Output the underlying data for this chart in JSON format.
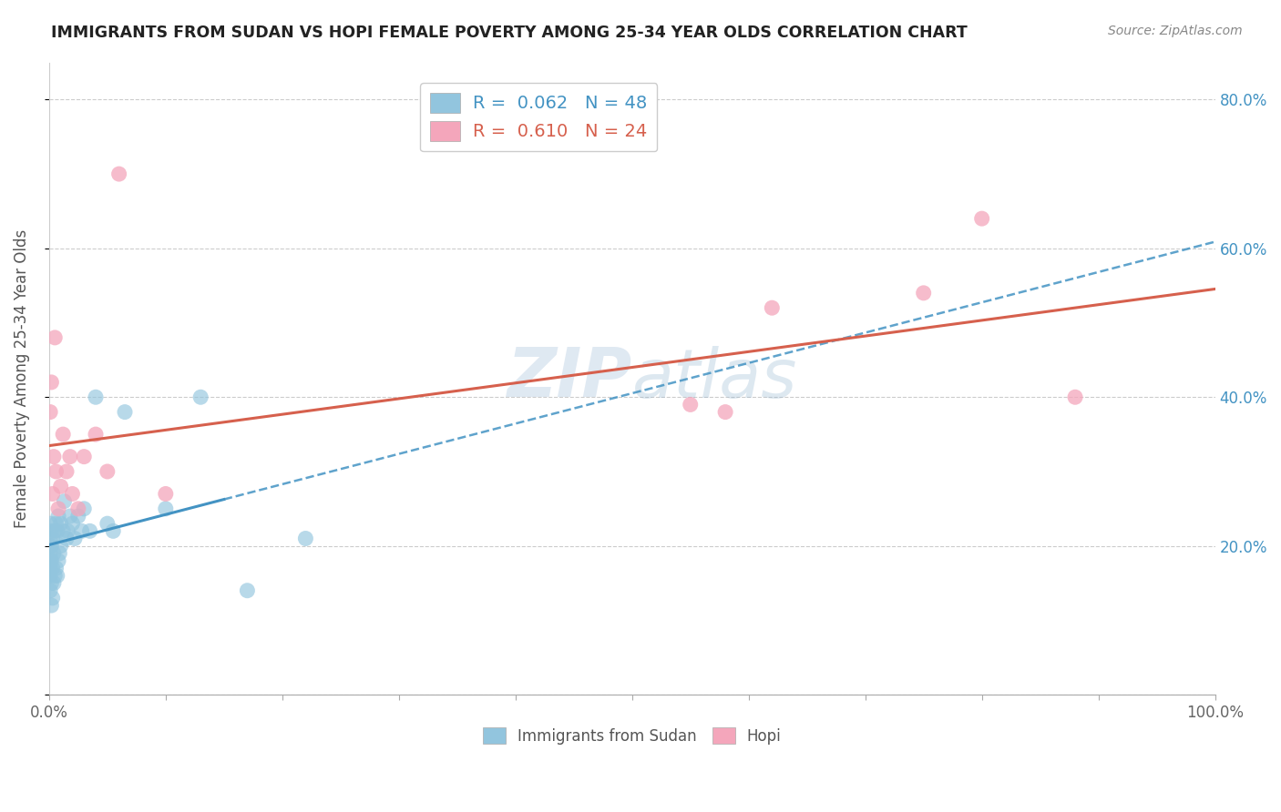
{
  "title": "IMMIGRANTS FROM SUDAN VS HOPI FEMALE POVERTY AMONG 25-34 YEAR OLDS CORRELATION CHART",
  "source": "Source: ZipAtlas.com",
  "ylabel": "Female Poverty Among 25-34 Year Olds",
  "xlim": [
    0.0,
    1.0
  ],
  "ylim": [
    0.0,
    0.85
  ],
  "blue_R": "0.062",
  "blue_N": "48",
  "pink_R": "0.610",
  "pink_N": "24",
  "blue_color": "#92c5de",
  "pink_color": "#f4a6bb",
  "blue_line_color": "#4393c3",
  "pink_line_color": "#d6604d",
  "right_label_color": "#4393c3",
  "watermark_color": "#c8d8e8",
  "sudan_x": [
    0.001,
    0.001,
    0.001,
    0.001,
    0.001,
    0.001,
    0.001,
    0.001,
    0.002,
    0.002,
    0.002,
    0.002,
    0.002,
    0.003,
    0.003,
    0.003,
    0.004,
    0.004,
    0.005,
    0.005,
    0.006,
    0.006,
    0.007,
    0.007,
    0.008,
    0.008,
    0.009,
    0.01,
    0.01,
    0.012,
    0.013,
    0.015,
    0.016,
    0.018,
    0.02,
    0.022,
    0.025,
    0.028,
    0.03,
    0.035,
    0.04,
    0.05,
    0.055,
    0.065,
    0.1,
    0.13,
    0.17,
    0.22
  ],
  "sudan_y": [
    0.14,
    0.16,
    0.17,
    0.18,
    0.19,
    0.2,
    0.21,
    0.23,
    0.12,
    0.15,
    0.18,
    0.2,
    0.22,
    0.13,
    0.17,
    0.21,
    0.15,
    0.19,
    0.16,
    0.22,
    0.17,
    0.23,
    0.16,
    0.22,
    0.18,
    0.24,
    0.19,
    0.2,
    0.23,
    0.22,
    0.26,
    0.21,
    0.22,
    0.24,
    0.23,
    0.21,
    0.24,
    0.22,
    0.25,
    0.22,
    0.4,
    0.23,
    0.22,
    0.38,
    0.25,
    0.4,
    0.14,
    0.21
  ],
  "hopi_x": [
    0.001,
    0.002,
    0.003,
    0.004,
    0.005,
    0.006,
    0.008,
    0.01,
    0.012,
    0.015,
    0.018,
    0.02,
    0.025,
    0.03,
    0.04,
    0.05,
    0.06,
    0.1,
    0.55,
    0.58,
    0.62,
    0.75,
    0.8,
    0.88
  ],
  "hopi_y": [
    0.38,
    0.42,
    0.27,
    0.32,
    0.48,
    0.3,
    0.25,
    0.28,
    0.35,
    0.3,
    0.32,
    0.27,
    0.25,
    0.32,
    0.35,
    0.3,
    0.7,
    0.27,
    0.39,
    0.38,
    0.52,
    0.54,
    0.64,
    0.4
  ]
}
